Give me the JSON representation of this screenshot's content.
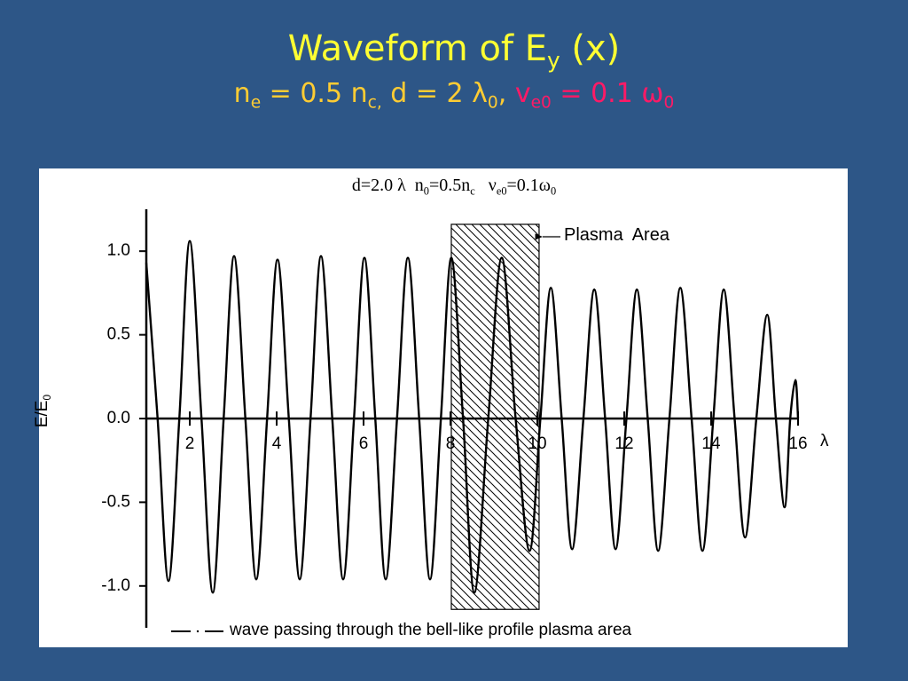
{
  "slide": {
    "title": [
      "Waveform of E",
      "y",
      " (x)"
    ],
    "subtitle": [
      "n",
      "e",
      " = 0.5 n",
      "c,",
      " d = 2 λ",
      "0",
      ", ",
      "v",
      "e0",
      " = 0.1 ω",
      "0"
    ]
  },
  "chart_data": {
    "type": "line",
    "title": [
      "d=2.0 λ  n",
      "0",
      "=0.5n",
      "c",
      "   ν",
      "e0",
      "=0.1ω",
      "0"
    ],
    "xlabel": "λ",
    "ylabel": [
      "E/E",
      "0"
    ],
    "x": [
      1.0,
      1.26,
      1.51,
      1.76,
      2.0,
      2.27,
      2.53,
      2.78,
      3.02,
      3.28,
      3.53,
      3.78,
      4.02,
      4.28,
      4.53,
      4.78,
      5.02,
      5.28,
      5.53,
      5.78,
      6.02,
      6.27,
      6.51,
      6.77,
      7.02,
      7.28,
      7.53,
      7.78,
      8.02,
      8.29,
      8.55,
      8.87,
      9.18,
      9.5,
      9.82,
      10.07,
      10.31,
      10.56,
      10.8,
      11.06,
      11.31,
      11.56,
      11.8,
      12.05,
      12.29,
      12.54,
      12.78,
      13.04,
      13.29,
      13.55,
      13.8,
      14.05,
      14.29,
      14.54,
      14.78,
      15.04,
      15.29,
      15.49,
      15.69,
      15.82,
      15.94,
      16.0
    ],
    "series": [
      {
        "name": "wave passing through the bell-like profile plasma area",
        "color": "#000000",
        "values": [
          0.93,
          0,
          -0.97,
          0,
          1.06,
          0,
          -1.04,
          0,
          0.97,
          0,
          -0.96,
          0,
          0.95,
          0,
          -0.96,
          0,
          0.97,
          0,
          -0.96,
          0,
          0.96,
          0,
          -0.96,
          0,
          0.96,
          0,
          -0.96,
          0,
          0.96,
          0,
          -1.04,
          0,
          0.96,
          0,
          -0.79,
          0,
          0.78,
          0,
          -0.78,
          0,
          0.77,
          0,
          -0.78,
          0,
          0.77,
          0,
          -0.79,
          0,
          0.78,
          0,
          -0.79,
          0,
          0.77,
          0,
          -0.71,
          0,
          0.62,
          0,
          -0.53,
          0,
          0.23,
          0
        ]
      }
    ],
    "xlim": [
      1.0,
      16.0
    ],
    "ylim": [
      -1.25,
      1.25
    ],
    "xticks": [
      2,
      4,
      6,
      8,
      10,
      12,
      14,
      16
    ],
    "yticks": [
      {
        "value": -1,
        "label": "-1.0"
      },
      -0.5,
      {
        "value": 0,
        "label": "0.0"
      },
      0.5,
      {
        "value": 1,
        "label": "1.0"
      }
    ],
    "annotation": {
      "text": "Plasma  Area",
      "x": [
        8.02,
        10.04
      ],
      "y": [
        -1.14,
        1.16
      ]
    }
  }
}
